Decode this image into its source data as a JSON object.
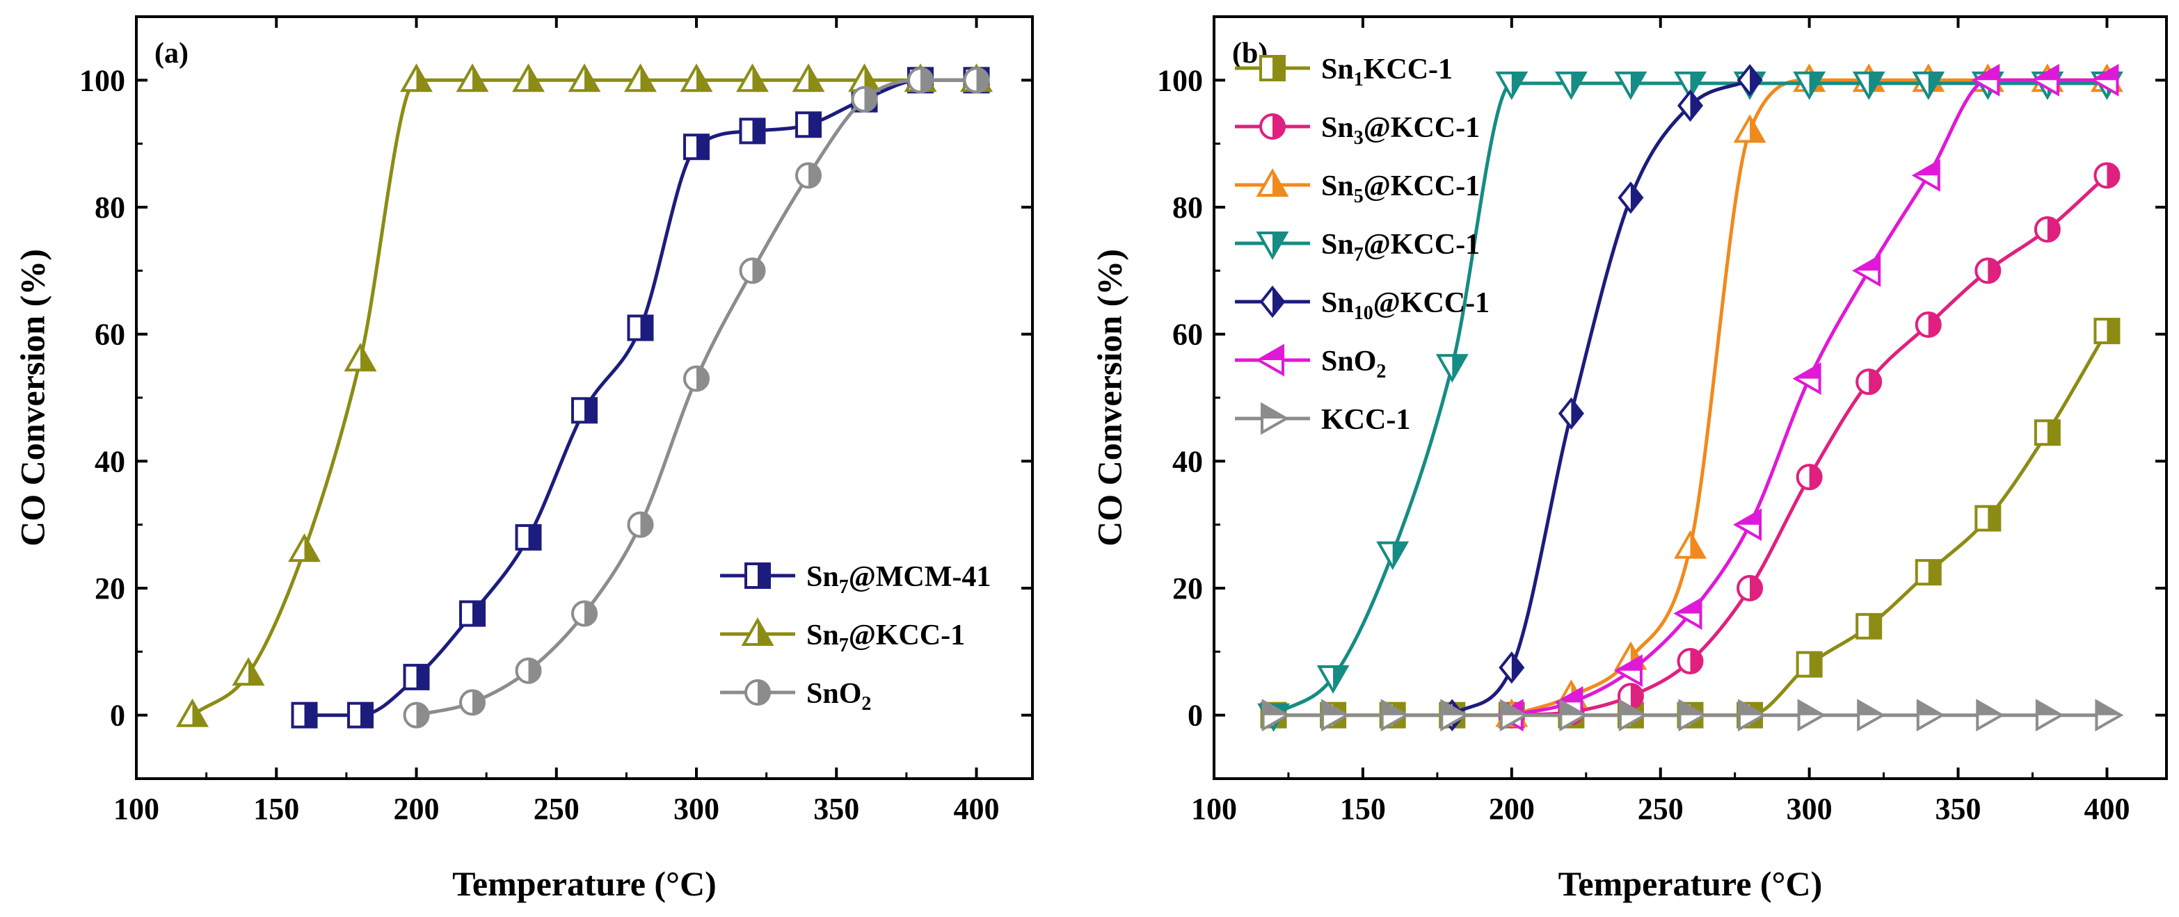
{
  "chart_data": [
    {
      "type": "line",
      "panel_label": "(a)",
      "title": "",
      "xlabel": "Temperature (°C)",
      "ylabel": "CO Conversion (%)",
      "xlim": [
        100,
        420
      ],
      "ylim": [
        -10,
        110
      ],
      "xticks": [
        100,
        150,
        200,
        250,
        300,
        350,
        400
      ],
      "yticks": [
        0,
        20,
        40,
        60,
        80,
        100
      ],
      "grid": false,
      "legend_position": "bottom-right",
      "series": [
        {
          "name": "Sn7@MCM-41",
          "legend_main": "Sn",
          "legend_sub": "7",
          "legend_rest": "@MCM-41",
          "color": "#1c1c7e",
          "marker": "square-half",
          "x": [
            160,
            180,
            200,
            220,
            240,
            260,
            280,
            300,
            320,
            340,
            360,
            380,
            400
          ],
          "values": [
            0,
            0,
            6,
            16,
            28,
            48,
            61,
            89.5,
            92,
            93,
            97,
            100,
            100
          ]
        },
        {
          "name": "Sn7@KCC-1",
          "legend_main": "Sn",
          "legend_sub": "7",
          "legend_rest": "@KCC-1",
          "color": "#8c8c14",
          "marker": "triangle-up",
          "x": [
            120,
            140,
            160,
            180,
            200,
            220,
            240,
            260,
            280,
            300,
            320,
            340,
            360,
            380,
            400
          ],
          "values": [
            0,
            6.5,
            26,
            56,
            100,
            100,
            100,
            100,
            100,
            100,
            100,
            100,
            100,
            100,
            100
          ]
        },
        {
          "name": "SnO2",
          "legend_main": "SnO",
          "legend_sub": "2",
          "legend_rest": "",
          "color": "#8c8c8c",
          "marker": "circle-half",
          "x": [
            200,
            220,
            240,
            260,
            280,
            300,
            320,
            340,
            360,
            380,
            400
          ],
          "values": [
            0,
            2,
            7,
            16,
            30,
            53,
            70,
            85,
            97,
            100,
            100
          ]
        }
      ]
    },
    {
      "type": "line",
      "panel_label": "(b)",
      "title": "",
      "xlabel": "Temperature (°C)",
      "ylabel": "CO Conversion (%)",
      "xlim": [
        100,
        420
      ],
      "ylim": [
        -10,
        110
      ],
      "xticks": [
        100,
        150,
        200,
        250,
        300,
        350,
        400
      ],
      "yticks": [
        0,
        20,
        40,
        60,
        80,
        100
      ],
      "grid": false,
      "legend_position": "top-left",
      "series": [
        {
          "name": "Sn1KCC-1",
          "legend_main": "Sn",
          "legend_sub": "1",
          "legend_rest": "KCC-1",
          "color": "#8c8c14",
          "marker": "square-half",
          "x": [
            120,
            140,
            160,
            180,
            200,
            220,
            240,
            260,
            280,
            300,
            320,
            340,
            360,
            380,
            400
          ],
          "values": [
            0,
            0,
            0,
            0,
            0,
            0,
            0,
            0,
            0,
            8,
            14,
            22.5,
            31,
            44.5,
            60.5
          ]
        },
        {
          "name": "Sn3@KCC-1",
          "legend_main": "Sn",
          "legend_sub": "3",
          "legend_rest": "@KCC-1",
          "color": "#e0207f",
          "marker": "circle-half",
          "x": [
            200,
            220,
            240,
            260,
            280,
            300,
            320,
            340,
            360,
            380,
            400
          ],
          "values": [
            0,
            0.5,
            3,
            8.5,
            20,
            37.5,
            52.5,
            61.5,
            70,
            76.5,
            85
          ]
        },
        {
          "name": "Sn5@KCC-1",
          "legend_main": "Sn",
          "legend_sub": "5",
          "legend_rest": "@KCC-1",
          "color": "#f08a1c",
          "marker": "triangle-up",
          "x": [
            200,
            220,
            240,
            260,
            280,
            300,
            320,
            340,
            360,
            380,
            400
          ],
          "values": [
            0,
            3,
            9,
            26.5,
            92,
            100,
            100,
            100,
            100,
            100,
            100
          ]
        },
        {
          "name": "Sn7@KCC-1",
          "legend_main": "Sn",
          "legend_sub": "7",
          "legend_rest": "@KCC-1",
          "color": "#158c84",
          "marker": "triangle-down",
          "x": [
            120,
            140,
            160,
            180,
            200,
            220,
            240,
            260,
            280,
            300,
            320,
            340,
            360,
            380,
            400
          ],
          "values": [
            0,
            6,
            25.5,
            55,
            99.5,
            99.5,
            99.5,
            99.5,
            99.5,
            99.5,
            99.5,
            99.5,
            99.5,
            99.5,
            99.5
          ]
        },
        {
          "name": "Sn10@KCC-1",
          "legend_main": "Sn",
          "legend_sub": "10",
          "legend_rest": "@KCC-1",
          "color": "#1c1c7e",
          "marker": "diamond",
          "x": [
            180,
            200,
            220,
            240,
            260,
            280
          ],
          "values": [
            0,
            7.5,
            47.5,
            81.5,
            96,
            100
          ]
        },
        {
          "name": "SnO2",
          "legend_main": "SnO",
          "legend_sub": "2",
          "legend_rest": "",
          "color": "#e018d8",
          "marker": "triangle-left",
          "x": [
            200,
            220,
            240,
            260,
            280,
            300,
            320,
            340,
            360,
            380,
            400
          ],
          "values": [
            0,
            2,
            7,
            16,
            30,
            53,
            70,
            85,
            100,
            100,
            100
          ]
        },
        {
          "name": "KCC-1",
          "legend_main": "KCC-1",
          "legend_sub": "",
          "legend_rest": "",
          "color": "#8c8c8c",
          "marker": "triangle-right",
          "x": [
            120,
            140,
            160,
            180,
            200,
            220,
            240,
            260,
            280,
            300,
            320,
            340,
            360,
            380,
            400
          ],
          "values": [
            0,
            0,
            0,
            0,
            0,
            0,
            0,
            0,
            0,
            0,
            0,
            0,
            0,
            0,
            0
          ]
        }
      ]
    }
  ]
}
